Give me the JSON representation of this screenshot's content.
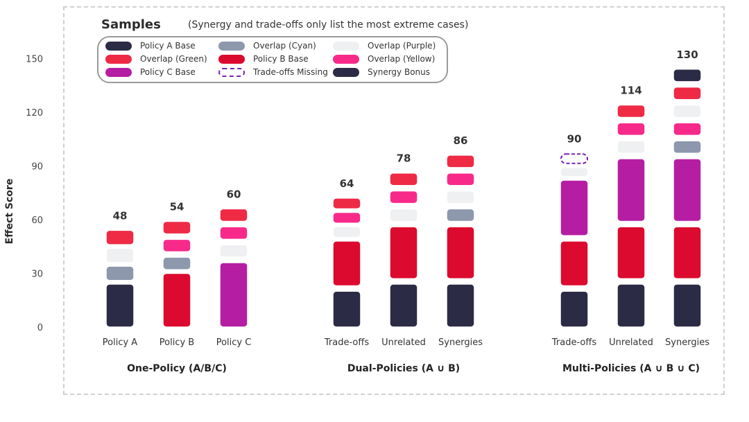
{
  "legend": {
    "title": "Samples",
    "note": "(Synergy and trade-offs only list the most extreme cases)",
    "items": [
      {
        "label": "Policy A Base",
        "color": "#2b2b45",
        "dashed": false
      },
      {
        "label": "Overlap (Green)",
        "color": "#ee2a45",
        "dashed": false
      },
      {
        "label": "Policy C Base",
        "color": "#b51ea3",
        "dashed": false
      },
      {
        "label": "Overlap (Cyan)",
        "color": "#8d98ad",
        "dashed": false
      },
      {
        "label": "Policy B Base",
        "color": "#dc0a2e",
        "dashed": false
      },
      {
        "label": "Trade-offs Missing",
        "color": "#7a20b0",
        "dashed": true
      },
      {
        "label": "Overlap (Purple)",
        "color": "#eef0f2",
        "dashed": false
      },
      {
        "label": "Overlap (Yellow)",
        "color": "#f72a8a",
        "dashed": false
      },
      {
        "label": "Synergy Bonus",
        "color": "#2b2b45",
        "dashed": false
      }
    ]
  },
  "chart_data": {
    "type": "bar",
    "ylabel": "Effect Score",
    "ylim": [
      0,
      165
    ],
    "yticks": [
      0,
      30,
      60,
      90,
      120,
      150
    ],
    "colors": {
      "Policy A Base": "#2b2b45",
      "Policy B Base": "#dc0a2e",
      "Policy C Base": "#b51ea3",
      "Overlap (Cyan)": "#8d98ad",
      "Overlap (Purple)": "#eef0f2",
      "Overlap (Yellow)": "#f72a8a",
      "Overlap (Green)": "#ee2a45",
      "Synergy Bonus": "#2b2b45",
      "Trade-offs Missing": "#7a20b0"
    },
    "groups": [
      {
        "label": "One-Policy (A/B/C)",
        "bars": [
          {
            "label": "Policy A",
            "total": "48",
            "segments": [
              {
                "series": "Policy A Base",
                "from": 0,
                "to": 24
              },
              {
                "series": "Overlap (Cyan)",
                "from": 26,
                "to": 34
              },
              {
                "series": "Overlap (Purple)",
                "from": 36,
                "to": 44
              },
              {
                "series": "Overlap (Green)",
                "from": 46,
                "to": 54
              }
            ]
          },
          {
            "label": "Policy B",
            "total": "54",
            "segments": [
              {
                "series": "Policy B Base",
                "from": 0,
                "to": 30
              },
              {
                "series": "Overlap (Cyan)",
                "from": 32,
                "to": 39
              },
              {
                "series": "Overlap (Yellow)",
                "from": 42,
                "to": 49
              },
              {
                "series": "Overlap (Green)",
                "from": 52,
                "to": 59
              }
            ]
          },
          {
            "label": "Policy C",
            "total": "60",
            "segments": [
              {
                "series": "Policy C Base",
                "from": 0,
                "to": 36
              },
              {
                "series": "Overlap (Purple)",
                "from": 39,
                "to": 46
              },
              {
                "series": "Overlap (Yellow)",
                "from": 49,
                "to": 56
              },
              {
                "series": "Overlap (Green)",
                "from": 59,
                "to": 66
              }
            ]
          }
        ]
      },
      {
        "label": "Dual-Policies (A ∪ B)",
        "bars": [
          {
            "label": "Trade-offs",
            "total": "64",
            "segments": [
              {
                "series": "Policy A Base",
                "from": 0,
                "to": 20
              },
              {
                "series": "Policy B Base",
                "from": 23,
                "to": 48
              },
              {
                "series": "Overlap (Purple)",
                "from": 50,
                "to": 56
              },
              {
                "series": "Overlap (Yellow)",
                "from": 58,
                "to": 64
              },
              {
                "series": "Overlap (Green)",
                "from": 66,
                "to": 72
              }
            ]
          },
          {
            "label": "Unrelated",
            "total": "78",
            "segments": [
              {
                "series": "Policy A Base",
                "from": 0,
                "to": 24
              },
              {
                "series": "Policy B Base",
                "from": 27,
                "to": 56
              },
              {
                "series": "Overlap (Purple)",
                "from": 59,
                "to": 66
              },
              {
                "series": "Overlap (Yellow)",
                "from": 69,
                "to": 76
              },
              {
                "series": "Overlap (Green)",
                "from": 79,
                "to": 86
              }
            ]
          },
          {
            "label": "Synergies",
            "total": "86",
            "segments": [
              {
                "series": "Policy A Base",
                "from": 0,
                "to": 24
              },
              {
                "series": "Policy B Base",
                "from": 27,
                "to": 56
              },
              {
                "series": "Overlap (Cyan)",
                "from": 59,
                "to": 66
              },
              {
                "series": "Overlap (Purple)",
                "from": 69,
                "to": 76
              },
              {
                "series": "Overlap (Yellow)",
                "from": 79,
                "to": 86
              },
              {
                "series": "Overlap (Green)",
                "from": 89,
                "to": 96
              }
            ]
          }
        ]
      },
      {
        "label": "Multi-Policies (A ∪ B ∪ C)",
        "bars": [
          {
            "label": "Trade-offs",
            "total": "90",
            "segments": [
              {
                "series": "Policy A Base",
                "from": 0,
                "to": 20
              },
              {
                "series": "Policy B Base",
                "from": 23,
                "to": 48
              },
              {
                "series": "Policy C Base",
                "from": 51,
                "to": 82
              },
              {
                "series": "Overlap (Purple)",
                "from": 84,
                "to": 89
              },
              {
                "series": "Trade-offs Missing",
                "from": 91,
                "to": 97
              }
            ]
          },
          {
            "label": "Unrelated",
            "total": "114",
            "segments": [
              {
                "series": "Policy A Base",
                "from": 0,
                "to": 24
              },
              {
                "series": "Policy B Base",
                "from": 27,
                "to": 56
              },
              {
                "series": "Policy C Base",
                "from": 59,
                "to": 94
              },
              {
                "series": "Overlap (Purple)",
                "from": 97,
                "to": 104
              },
              {
                "series": "Overlap (Yellow)",
                "from": 107,
                "to": 114
              },
              {
                "series": "Overlap (Green)",
                "from": 117,
                "to": 124
              }
            ]
          },
          {
            "label": "Synergies",
            "total": "130",
            "segments": [
              {
                "series": "Policy A Base",
                "from": 0,
                "to": 24
              },
              {
                "series": "Policy B Base",
                "from": 27,
                "to": 56
              },
              {
                "series": "Policy C Base",
                "from": 59,
                "to": 94
              },
              {
                "series": "Overlap (Cyan)",
                "from": 97,
                "to": 104
              },
              {
                "series": "Overlap (Yellow)",
                "from": 107,
                "to": 114
              },
              {
                "series": "Overlap (Purple)",
                "from": 117,
                "to": 124
              },
              {
                "series": "Overlap (Green)",
                "from": 127,
                "to": 134
              },
              {
                "series": "Synergy Bonus",
                "from": 137,
                "to": 144
              }
            ]
          }
        ]
      }
    ]
  }
}
